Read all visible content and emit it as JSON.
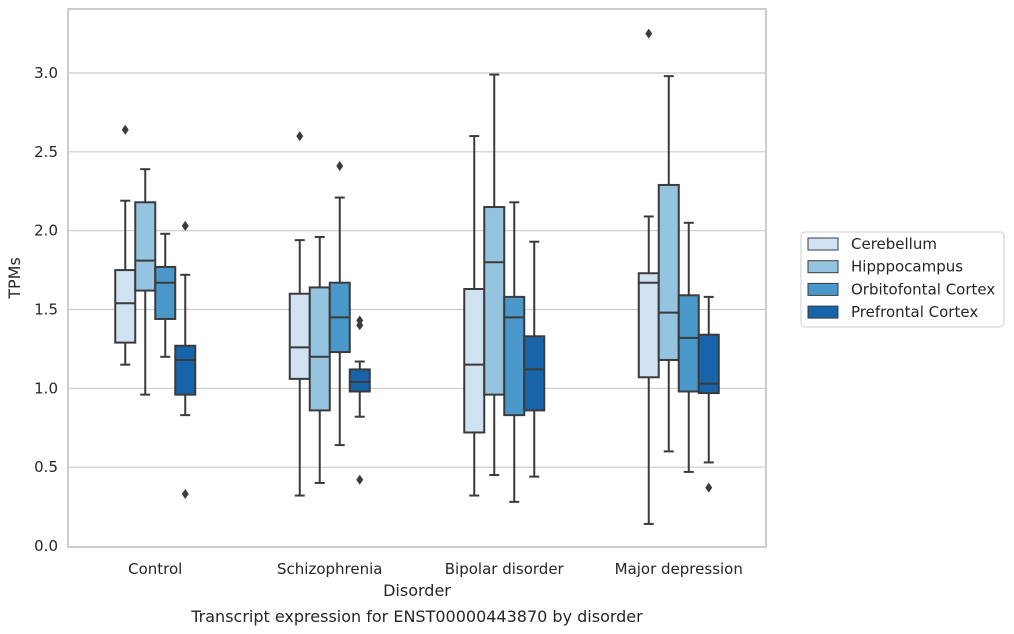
{
  "chart_data": {
    "type": "box",
    "xlabel": "Disorder",
    "ylabel": "TPMs",
    "caption": "Transcript expression for ENST00000443870 by disorder",
    "ylim": [
      0.0,
      3.4
    ],
    "yticks": [
      "0.0",
      "0.5",
      "1.0",
      "1.5",
      "2.0",
      "2.5",
      "3.0"
    ],
    "grid": "horizontal",
    "legend_position": "right-outside",
    "categories": [
      "Control",
      "Schizophrenia",
      "Bipolar disorder",
      "Major depression"
    ],
    "series": [
      {
        "name": "Cerebellum",
        "color": "#d0e1f2",
        "boxes": [
          {
            "whislo": 1.15,
            "q1": 1.29,
            "med": 1.54,
            "q3": 1.75,
            "whishi": 2.19,
            "fliers": [
              2.64
            ]
          },
          {
            "whislo": 0.32,
            "q1": 1.06,
            "med": 1.26,
            "q3": 1.6,
            "whishi": 1.94,
            "fliers": [
              2.6
            ]
          },
          {
            "whislo": 0.32,
            "q1": 0.72,
            "med": 1.15,
            "q3": 1.63,
            "whishi": 2.6,
            "fliers": []
          },
          {
            "whislo": 0.14,
            "q1": 1.07,
            "med": 1.67,
            "q3": 1.73,
            "whishi": 2.09,
            "fliers": [
              3.25
            ]
          }
        ]
      },
      {
        "name": "Hipppocampus",
        "color": "#94c4df",
        "boxes": [
          {
            "whislo": 0.96,
            "q1": 1.62,
            "med": 1.81,
            "q3": 2.18,
            "whishi": 2.39,
            "fliers": []
          },
          {
            "whislo": 0.4,
            "q1": 0.86,
            "med": 1.2,
            "q3": 1.64,
            "whishi": 1.96,
            "fliers": []
          },
          {
            "whislo": 0.45,
            "q1": 0.96,
            "med": 1.8,
            "q3": 2.15,
            "whishi": 2.99,
            "fliers": []
          },
          {
            "whislo": 0.6,
            "q1": 1.18,
            "med": 1.48,
            "q3": 2.29,
            "whishi": 2.98,
            "fliers": []
          }
        ]
      },
      {
        "name": "Orbitofontal Cortex",
        "color": "#4a98c9",
        "boxes": [
          {
            "whislo": 1.2,
            "q1": 1.44,
            "med": 1.67,
            "q3": 1.77,
            "whishi": 1.98,
            "fliers": []
          },
          {
            "whislo": 0.64,
            "q1": 1.23,
            "med": 1.45,
            "q3": 1.67,
            "whishi": 2.21,
            "fliers": [
              2.41
            ]
          },
          {
            "whislo": 0.28,
            "q1": 0.83,
            "med": 1.45,
            "q3": 1.58,
            "whishi": 2.18,
            "fliers": []
          },
          {
            "whislo": 0.47,
            "q1": 0.98,
            "med": 1.32,
            "q3": 1.59,
            "whishi": 2.05,
            "fliers": []
          }
        ]
      },
      {
        "name": "Prefrontal Cortex",
        "color": "#1764ab",
        "boxes": [
          {
            "whislo": 0.83,
            "q1": 0.96,
            "med": 1.18,
            "q3": 1.27,
            "whishi": 1.72,
            "fliers": [
              2.03,
              0.33
            ]
          },
          {
            "whislo": 0.82,
            "q1": 0.98,
            "med": 1.04,
            "q3": 1.12,
            "whishi": 1.17,
            "fliers": [
              1.43,
              1.4,
              0.42
            ]
          },
          {
            "whislo": 0.44,
            "q1": 0.86,
            "med": 1.12,
            "q3": 1.33,
            "whishi": 1.93,
            "fliers": []
          },
          {
            "whislo": 0.53,
            "q1": 0.97,
            "med": 1.03,
            "q3": 1.34,
            "whishi": 1.58,
            "fliers": [
              0.37
            ]
          }
        ]
      }
    ]
  }
}
